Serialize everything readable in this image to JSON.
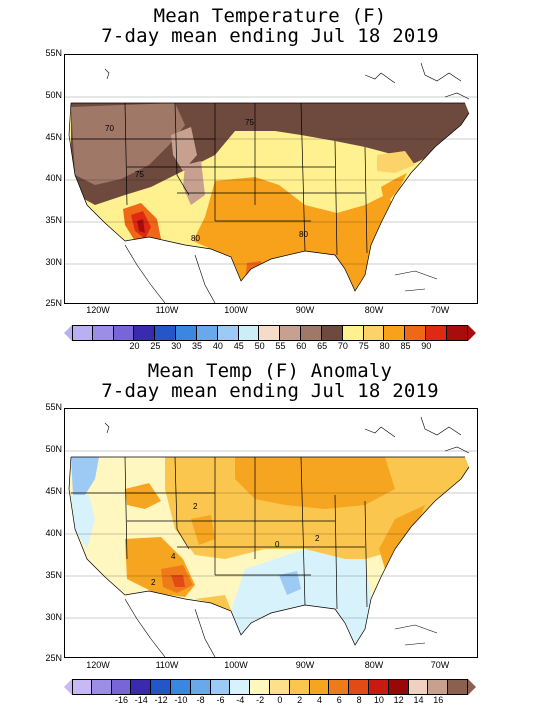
{
  "panels": [
    {
      "title_line1": "Mean Temperature (F)",
      "title_line2": "7-day mean ending Jul 18 2019",
      "lat_labels": [
        "55N",
        "50N",
        "45N",
        "40N",
        "35N",
        "30N",
        "25N"
      ],
      "lon_labels": [
        "120W",
        "110W",
        "100W",
        "90W",
        "80W",
        "70W"
      ],
      "contour_labels": [
        "70",
        "75",
        "75",
        "80",
        "80"
      ],
      "colorbar_labels": [
        "20",
        "25",
        "30",
        "35",
        "40",
        "45",
        "50",
        "55",
        "60",
        "65",
        "70",
        "75",
        "80",
        "85",
        "90"
      ],
      "colorbar_colors": [
        "#b8b0f0",
        "#9c8ee6",
        "#7866d8",
        "#3a2ab0",
        "#2456c8",
        "#3a86e0",
        "#6aa8ec",
        "#9ccaf4",
        "#cceef8",
        "#f4dcc8",
        "#c8a090",
        "#a07868",
        "#6e4a3e",
        "#fff090",
        "#fcd26a",
        "#f7a21a",
        "#ef6818",
        "#de2a14",
        "#a80c0c"
      ]
    },
    {
      "title_line1": "Mean Temp (F) Anomaly",
      "title_line2": "7-day mean ending Jul 18 2019",
      "lat_labels": [
        "55N",
        "50N",
        "45N",
        "40N",
        "35N",
        "30N",
        "25N"
      ],
      "lon_labels": [
        "120W",
        "110W",
        "100W",
        "90W",
        "80W",
        "70W"
      ],
      "contour_labels": [
        "2",
        "2",
        "0",
        "2",
        "4"
      ],
      "colorbar_labels": [
        "-16",
        "-14",
        "-12",
        "-10",
        "-8",
        "-6",
        "-4",
        "-2",
        "0",
        "2",
        "4",
        "6",
        "8",
        "10",
        "12",
        "14",
        "16"
      ],
      "colorbar_colors": [
        "#c8b8f4",
        "#9c8ee6",
        "#7866d8",
        "#3a2ab0",
        "#2456c8",
        "#3a86e0",
        "#6aa8ec",
        "#9ccaf4",
        "#d8f2fb",
        "#fff6c0",
        "#fde08a",
        "#fbc64e",
        "#f6a520",
        "#ef7a1a",
        "#e24a16",
        "#c81a12",
        "#980808",
        "#f0d0c0",
        "#c8a090",
        "#8c6050"
      ]
    }
  ]
}
